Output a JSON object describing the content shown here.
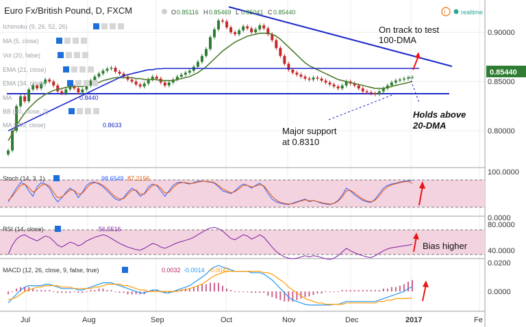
{
  "header": {
    "title": "Euro Fx/British Pound, D, FXCM",
    "ohlc": [
      {
        "k": "O",
        "v": "0.85116"
      },
      {
        "k": "H",
        "v": "0.85469"
      },
      {
        "k": "L",
        "v": "0.85041"
      },
      {
        "k": "C",
        "v": "0.85440"
      }
    ],
    "realtime_label": "realtime",
    "colors": {
      "up": "#2e7d32",
      "down": "#c62828",
      "grid": "#e0e0e0"
    }
  },
  "indicators": {
    "ichimoku": "Ichimoku (9, 26, 52, 26)",
    "ma5": "MA (5, close)",
    "vol": "Vol (20, false)",
    "ema21": "EMA (21, close)",
    "ema34": "EMA (34, close)",
    "ma_small": "MA",
    "ma_small_value": "0.8440",
    "bb": "BB (20, close, 2)",
    "ma100": "MA (100, close)",
    "ma100_value": "0.8633"
  },
  "annotations": {
    "dma_line1": "On track to test",
    "dma_line2": "100-DMA",
    "support_line1": "Major support",
    "support_line2": "at 0.8310",
    "holds_line1": "Holds above",
    "holds_line2": "20-DMA",
    "bias": "Bias higher"
  },
  "stoch": {
    "label": "Stoch (14, 3, 1)",
    "k": "98.6549",
    "d": "87.2156"
  },
  "rsi": {
    "label": "RSI (14, close)",
    "value": "56.5516"
  },
  "macd": {
    "label": "MACD (12, 26, close, 9, false, true)",
    "v1": "0.0032",
    "v2": "-0.0014",
    "v3": "-0.0047"
  },
  "price_badge": "0.85440",
  "chart_data": {
    "type": "line",
    "title": "Euro Fx/British Pound, D, FXCM",
    "x_ticks": [
      "Jul",
      "Aug",
      "Sep",
      "Oct",
      "Nov",
      "Dec",
      "2017",
      "Fe"
    ],
    "price_axis": {
      "ticks": [
        "0.90000",
        "0.85000",
        "0.80000"
      ],
      "ylim": [
        0.764,
        0.93
      ]
    },
    "stoch_axis": {
      "ticks": [
        "100.0000",
        "0.0000"
      ]
    },
    "rsi_axis": {
      "ticks": [
        "80.0000",
        "40.0000"
      ]
    },
    "macd_axis": {
      "ticks": [
        "0.0200",
        "0.0000"
      ]
    },
    "close": [
      0.78,
      0.8,
      0.825,
      0.835,
      0.83,
      0.842,
      0.846,
      0.843,
      0.848,
      0.852,
      0.85,
      0.846,
      0.84,
      0.838,
      0.842,
      0.845,
      0.843,
      0.839,
      0.842,
      0.846,
      0.851,
      0.855,
      0.858,
      0.861,
      0.863,
      0.864,
      0.86,
      0.858,
      0.855,
      0.852,
      0.85,
      0.847,
      0.845,
      0.848,
      0.852,
      0.855,
      0.853,
      0.849,
      0.846,
      0.849,
      0.852,
      0.855,
      0.857,
      0.859,
      0.861,
      0.865,
      0.87,
      0.876,
      0.883,
      0.895,
      0.903,
      0.912,
      0.911,
      0.905,
      0.9,
      0.898,
      0.902,
      0.906,
      0.904,
      0.9,
      0.903,
      0.907,
      0.904,
      0.898,
      0.892,
      0.884,
      0.876,
      0.868,
      0.862,
      0.859,
      0.857,
      0.855,
      0.853,
      0.852,
      0.854,
      0.853,
      0.851,
      0.849,
      0.847,
      0.845,
      0.843,
      0.846,
      0.85,
      0.848,
      0.846,
      0.843,
      0.84,
      0.839,
      0.838,
      0.837,
      0.84,
      0.843,
      0.846,
      0.849,
      0.851,
      0.852,
      0.853,
      0.854,
      0.8544
    ],
    "sma20": [
      0.79,
      0.797,
      0.805,
      0.812,
      0.818,
      0.823,
      0.827,
      0.831,
      0.834,
      0.837,
      0.839,
      0.841,
      0.842,
      0.843,
      0.844,
      0.845,
      0.845,
      0.845,
      0.845,
      0.846,
      0.847,
      0.848,
      0.849,
      0.851,
      0.852,
      0.853,
      0.854,
      0.854,
      0.854,
      0.854,
      0.854,
      0.853,
      0.853,
      0.852,
      0.852,
      0.852,
      0.852,
      0.851,
      0.851,
      0.851,
      0.851,
      0.852,
      0.853,
      0.854,
      0.855,
      0.857,
      0.859,
      0.862,
      0.865,
      0.869,
      0.873,
      0.877,
      0.881,
      0.884,
      0.887,
      0.89,
      0.892,
      0.894,
      0.896,
      0.897,
      0.898,
      0.899,
      0.899,
      0.899,
      0.898,
      0.896,
      0.893,
      0.889,
      0.885,
      0.881,
      0.877,
      0.873,
      0.869,
      0.866,
      0.864,
      0.862,
      0.86,
      0.858,
      0.856,
      0.854,
      0.852,
      0.851,
      0.85,
      0.849,
      0.848,
      0.847,
      0.846,
      0.845,
      0.844,
      0.843,
      0.843,
      0.843,
      0.844,
      0.845,
      0.846,
      0.847,
      0.848,
      0.849,
      0.85
    ],
    "sma100": [
      0.8,
      0.802,
      0.804,
      0.806,
      0.808,
      0.81,
      0.812,
      0.814,
      0.816,
      0.818,
      0.82,
      0.822,
      0.824,
      0.826,
      0.828,
      0.83,
      0.832,
      0.834,
      0.836,
      0.838,
      0.84,
      0.842,
      0.844,
      0.846,
      0.848,
      0.85,
      0.852,
      0.854,
      0.856,
      0.857,
      0.858,
      0.859,
      0.86,
      0.861,
      0.862,
      0.862,
      0.863,
      0.863,
      0.8633,
      0.8633,
      0.8633,
      0.8633,
      0.8633,
      0.8633,
      0.8633,
      0.8633,
      0.8633,
      0.8633,
      0.8633,
      0.8633,
      0.8633,
      0.8633,
      0.8633,
      0.8633,
      0.8633,
      0.8633,
      0.8633,
      0.8633,
      0.8633,
      0.8633,
      0.8633,
      0.8633,
      0.8633,
      0.8633,
      0.8633,
      0.8633,
      0.8633,
      0.8633,
      0.8633,
      0.8633,
      0.8633,
      0.8633,
      0.8633,
      0.8633,
      0.8633,
      0.8633,
      0.8633,
      0.8633,
      0.8633,
      0.8633,
      0.8633,
      0.8633,
      0.8633,
      0.8633,
      0.8633,
      0.8633,
      0.8633,
      0.8633,
      0.8633,
      0.8633,
      0.8633,
      0.8633,
      0.8633,
      0.8633,
      0.8633,
      0.8633,
      0.8633,
      0.8633,
      0.8633
    ],
    "stoch_k": [
      20,
      45,
      70,
      90,
      85,
      60,
      40,
      75,
      90,
      85,
      70,
      40,
      20,
      35,
      55,
      70,
      60,
      35,
      55,
      80,
      90,
      92,
      85,
      75,
      60,
      45,
      30,
      25,
      35,
      55,
      70,
      60,
      40,
      50,
      75,
      85,
      80,
      60,
      40,
      60,
      80,
      90,
      92,
      88,
      85,
      90,
      95,
      96,
      94,
      92,
      88,
      75,
      60,
      55,
      50,
      60,
      75,
      85,
      80,
      70,
      80,
      88,
      75,
      50,
      30,
      20,
      15,
      12,
      10,
      15,
      20,
      25,
      30,
      20,
      25,
      20,
      15,
      12,
      10,
      15,
      25,
      45,
      70,
      60,
      45,
      35,
      25,
      20,
      18,
      30,
      50,
      70,
      80,
      85,
      88,
      92,
      95,
      97,
      98.65
    ],
    "stoch_d": [
      25,
      40,
      60,
      80,
      85,
      72,
      55,
      65,
      80,
      85,
      78,
      55,
      35,
      38,
      50,
      63,
      62,
      47,
      52,
      70,
      85,
      90,
      88,
      80,
      68,
      52,
      38,
      30,
      32,
      48,
      62,
      63,
      48,
      48,
      65,
      80,
      82,
      70,
      52,
      55,
      72,
      85,
      90,
      90,
      87,
      88,
      92,
      95,
      95,
      93,
      90,
      80,
      68,
      60,
      53,
      57,
      68,
      80,
      80,
      74,
      77,
      83,
      78,
      60,
      40,
      27,
      18,
      14,
      12,
      13,
      18,
      23,
      27,
      24,
      24,
      21,
      17,
      14,
      12,
      14,
      22,
      38,
      60,
      62,
      52,
      40,
      30,
      23,
      20,
      26,
      42,
      62,
      75,
      82,
      86,
      90,
      93,
      95,
      87.22
    ],
    "rsi": [
      40,
      55,
      65,
      70,
      72,
      68,
      65,
      62,
      66,
      70,
      68,
      62,
      55,
      52,
      56,
      60,
      58,
      54,
      57,
      62,
      65,
      68,
      70,
      72,
      70,
      66,
      62,
      58,
      55,
      52,
      50,
      48,
      47,
      50,
      54,
      58,
      56,
      52,
      50,
      53,
      56,
      59,
      61,
      63,
      65,
      68,
      72,
      76,
      80,
      83,
      84,
      82,
      78,
      72,
      66,
      64,
      68,
      72,
      70,
      65,
      68,
      72,
      68,
      60,
      52,
      45,
      40,
      36,
      34,
      33,
      34,
      36,
      38,
      36,
      38,
      37,
      35,
      33,
      32,
      34,
      38,
      44,
      50,
      46,
      43,
      40,
      38,
      36,
      35,
      38,
      42,
      46,
      49,
      51,
      52,
      53,
      54,
      55,
      56.55
    ],
    "macd": [
      -0.008,
      -0.005,
      -0.002,
      0.001,
      0.003,
      0.004,
      0.004,
      0.004,
      0.004,
      0.005,
      0.005,
      0.004,
      0.003,
      0.002,
      0.002,
      0.002,
      0.002,
      0.001,
      0.001,
      0.002,
      0.003,
      0.004,
      0.005,
      0.006,
      0.006,
      0.006,
      0.005,
      0.004,
      0.003,
      0.002,
      0.001,
      0.0,
      -0.001,
      -0.001,
      0.0,
      0.001,
      0.001,
      0.0,
      -0.001,
      -0.001,
      0.0,
      0.001,
      0.002,
      0.003,
      0.004,
      0.006,
      0.008,
      0.01,
      0.012,
      0.015,
      0.017,
      0.018,
      0.017,
      0.016,
      0.015,
      0.014,
      0.014,
      0.014,
      0.014,
      0.013,
      0.013,
      0.013,
      0.012,
      0.01,
      0.008,
      0.005,
      0.002,
      -0.001,
      -0.004,
      -0.006,
      -0.007,
      -0.008,
      -0.009,
      -0.0095,
      -0.0095,
      -0.0095,
      -0.0095,
      -0.0095,
      -0.0095,
      -0.009,
      -0.009,
      -0.008,
      -0.007,
      -0.007,
      -0.007,
      -0.007,
      -0.007,
      -0.007,
      -0.007,
      -0.007,
      -0.006,
      -0.005,
      -0.004,
      -0.003,
      -0.002,
      -0.001,
      0.0,
      0.002,
      0.0032
    ],
    "macd_signal": [
      -0.006,
      -0.005,
      -0.004,
      -0.002,
      0.0,
      0.001,
      0.002,
      0.003,
      0.003,
      0.004,
      0.004,
      0.004,
      0.004,
      0.003,
      0.003,
      0.003,
      0.002,
      0.002,
      0.002,
      0.002,
      0.002,
      0.003,
      0.003,
      0.004,
      0.005,
      0.005,
      0.005,
      0.005,
      0.004,
      0.004,
      0.003,
      0.002,
      0.001,
      0.001,
      0.0,
      0.0,
      0.0,
      0.0,
      0.0,
      0.0,
      0.0,
      0.0,
      0.001,
      0.001,
      0.002,
      0.003,
      0.004,
      0.005,
      0.007,
      0.009,
      0.011,
      0.012,
      0.013,
      0.014,
      0.014,
      0.014,
      0.014,
      0.014,
      0.014,
      0.014,
      0.014,
      0.014,
      0.013,
      0.013,
      0.012,
      0.01,
      0.008,
      0.006,
      0.003,
      0.001,
      -0.001,
      -0.003,
      -0.005,
      -0.006,
      -0.007,
      -0.008,
      -0.008,
      -0.009,
      -0.009,
      -0.009,
      -0.009,
      -0.009,
      -0.008,
      -0.008,
      -0.008,
      -0.008,
      -0.008,
      -0.008,
      -0.008,
      -0.008,
      -0.007,
      -0.007,
      -0.006,
      -0.006,
      -0.005,
      -0.005,
      -0.005,
      -0.0048,
      -0.0047
    ]
  }
}
